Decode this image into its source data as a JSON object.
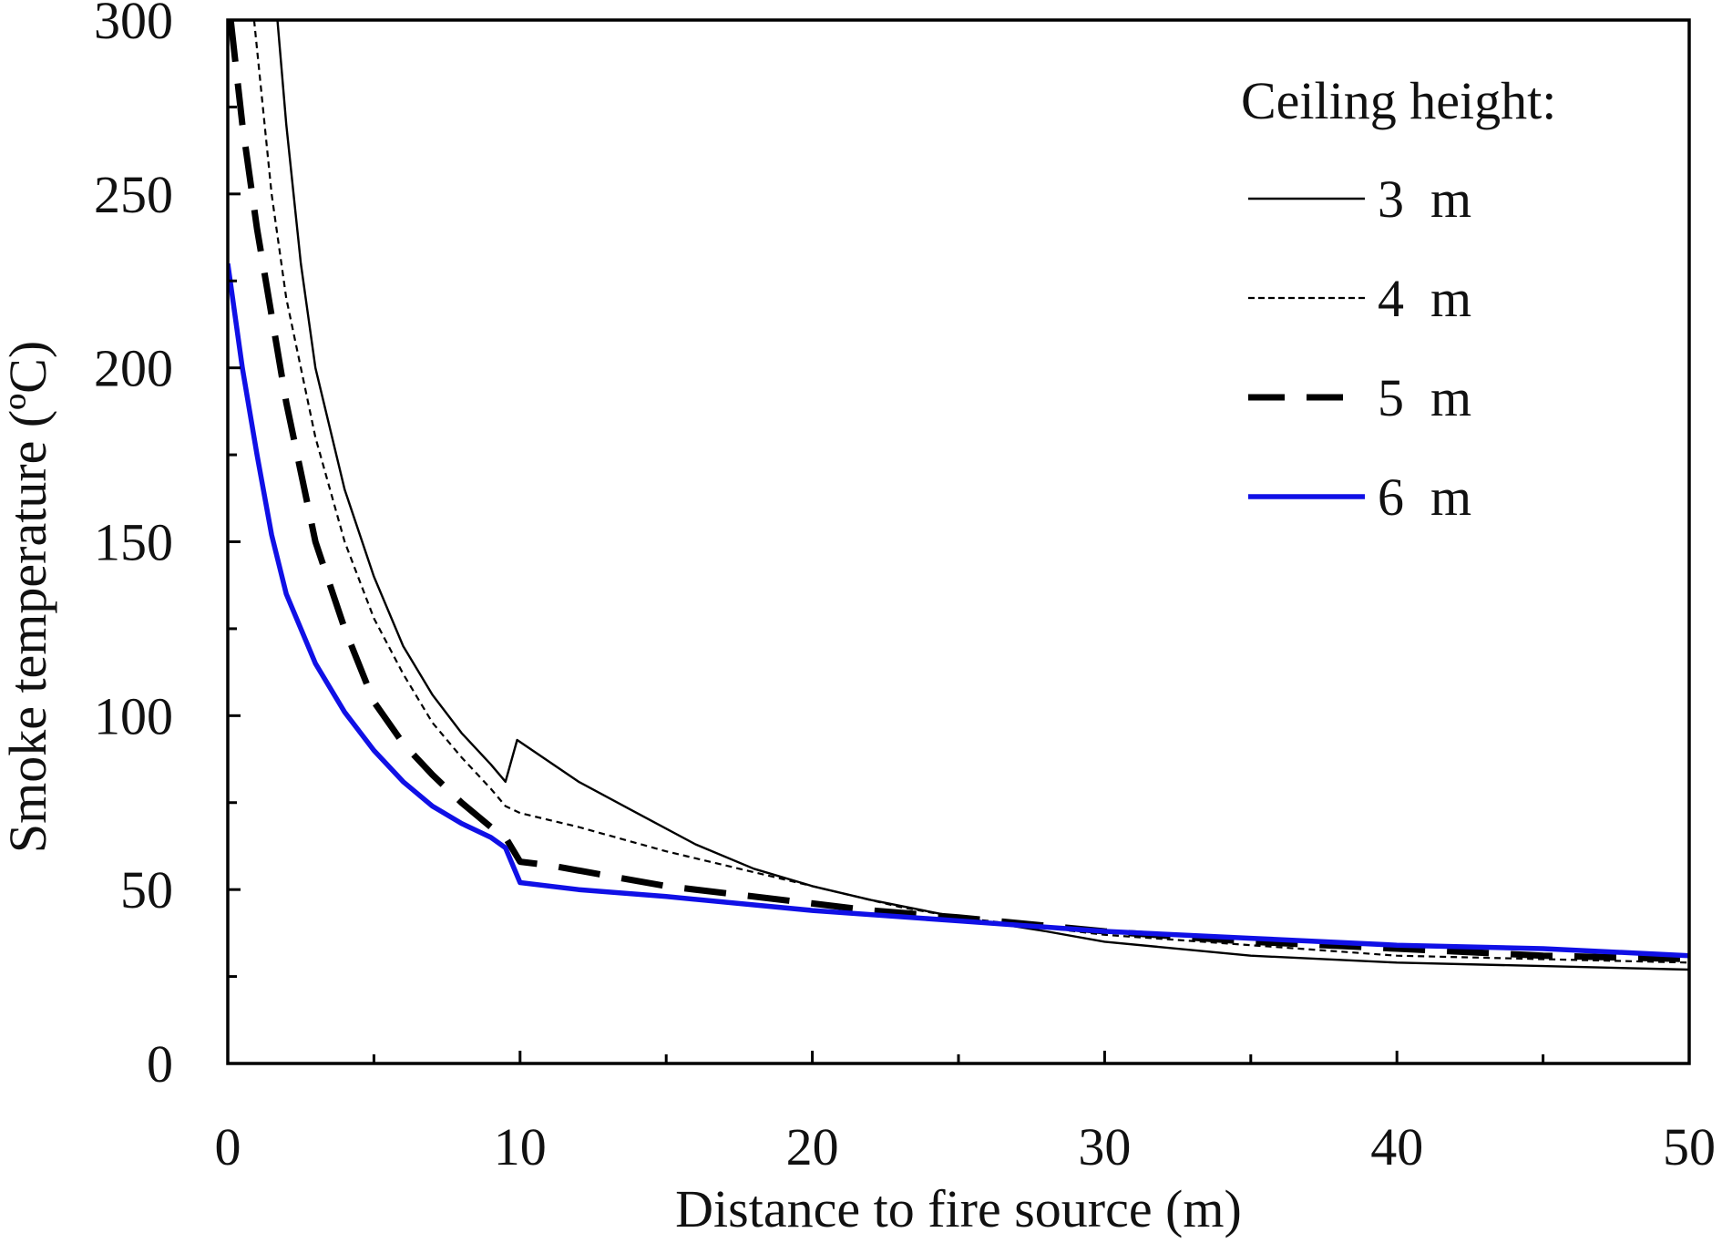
{
  "chart_data": {
    "type": "line",
    "title": "",
    "xlabel": "Distance to fire source (m)",
    "ylabel": "Smoke temperature (ºC)",
    "xlim": [
      0,
      50
    ],
    "ylim": [
      0,
      300
    ],
    "xticks": [
      0,
      10,
      20,
      30,
      40,
      50
    ],
    "yticks": [
      0,
      50,
      100,
      150,
      200,
      250,
      300
    ],
    "grid": false,
    "legend": {
      "title": "Ceiling height:",
      "placement": "top-right"
    },
    "series": [
      {
        "name": "3 m",
        "color": "#000000",
        "style": "solid-thin",
        "points": [
          [
            1.7,
            300
          ],
          [
            2,
            270
          ],
          [
            2.5,
            230
          ],
          [
            3,
            200
          ],
          [
            4,
            165
          ],
          [
            5,
            140
          ],
          [
            6,
            120
          ],
          [
            7,
            106
          ],
          [
            8,
            95
          ],
          [
            9,
            86
          ],
          [
            9.5,
            81
          ],
          [
            9.9,
            93
          ],
          [
            12,
            81
          ],
          [
            14,
            72
          ],
          [
            16,
            63
          ],
          [
            18,
            56
          ],
          [
            20,
            51
          ],
          [
            22,
            47
          ],
          [
            25,
            42
          ],
          [
            28,
            38
          ],
          [
            30,
            35
          ],
          [
            35,
            31
          ],
          [
            40,
            29
          ],
          [
            45,
            28
          ],
          [
            50,
            27
          ]
        ]
      },
      {
        "name": "4 m",
        "color": "#000000",
        "style": "dotted-thin",
        "points": [
          [
            0.9,
            300
          ],
          [
            1.5,
            250
          ],
          [
            2,
            220
          ],
          [
            3,
            180
          ],
          [
            4,
            150
          ],
          [
            5,
            128
          ],
          [
            6,
            112
          ],
          [
            7,
            98
          ],
          [
            8,
            88
          ],
          [
            9,
            79
          ],
          [
            9.5,
            74
          ],
          [
            10,
            72
          ],
          [
            12,
            68
          ],
          [
            15,
            61
          ],
          [
            18,
            55
          ],
          [
            20,
            51
          ],
          [
            23,
            45
          ],
          [
            25,
            42
          ],
          [
            30,
            37
          ],
          [
            35,
            34
          ],
          [
            40,
            31
          ],
          [
            45,
            30
          ],
          [
            50,
            29
          ]
        ]
      },
      {
        "name": "5 m",
        "color": "#000000",
        "style": "dashed-thick",
        "points": [
          [
            0.1,
            300
          ],
          [
            0.5,
            270
          ],
          [
            1,
            240
          ],
          [
            2,
            190
          ],
          [
            3,
            150
          ],
          [
            4,
            125
          ],
          [
            5,
            104
          ],
          [
            6,
            92
          ],
          [
            7,
            83
          ],
          [
            8,
            75
          ],
          [
            9,
            68
          ],
          [
            9.5,
            65
          ],
          [
            10,
            58
          ],
          [
            11,
            57
          ],
          [
            15,
            51
          ],
          [
            20,
            46
          ],
          [
            22,
            44
          ],
          [
            25,
            42
          ],
          [
            30,
            38
          ],
          [
            35,
            35
          ],
          [
            40,
            33
          ],
          [
            45,
            31
          ],
          [
            50,
            30
          ]
        ]
      },
      {
        "name": "6 m",
        "color": "#1010e6",
        "style": "solid-thick",
        "points": [
          [
            0,
            230
          ],
          [
            0.5,
            200
          ],
          [
            1,
            175
          ],
          [
            1.5,
            152
          ],
          [
            2,
            135
          ],
          [
            3,
            115
          ],
          [
            4,
            101
          ],
          [
            5,
            90
          ],
          [
            6,
            81
          ],
          [
            7,
            74
          ],
          [
            8,
            69
          ],
          [
            9,
            65
          ],
          [
            9.5,
            62
          ],
          [
            10,
            52
          ],
          [
            12,
            50
          ],
          [
            15,
            48
          ],
          [
            20,
            44
          ],
          [
            25,
            41
          ],
          [
            30,
            38
          ],
          [
            35,
            36
          ],
          [
            40,
            34
          ],
          [
            45,
            33
          ],
          [
            50,
            31
          ]
        ]
      }
    ]
  }
}
